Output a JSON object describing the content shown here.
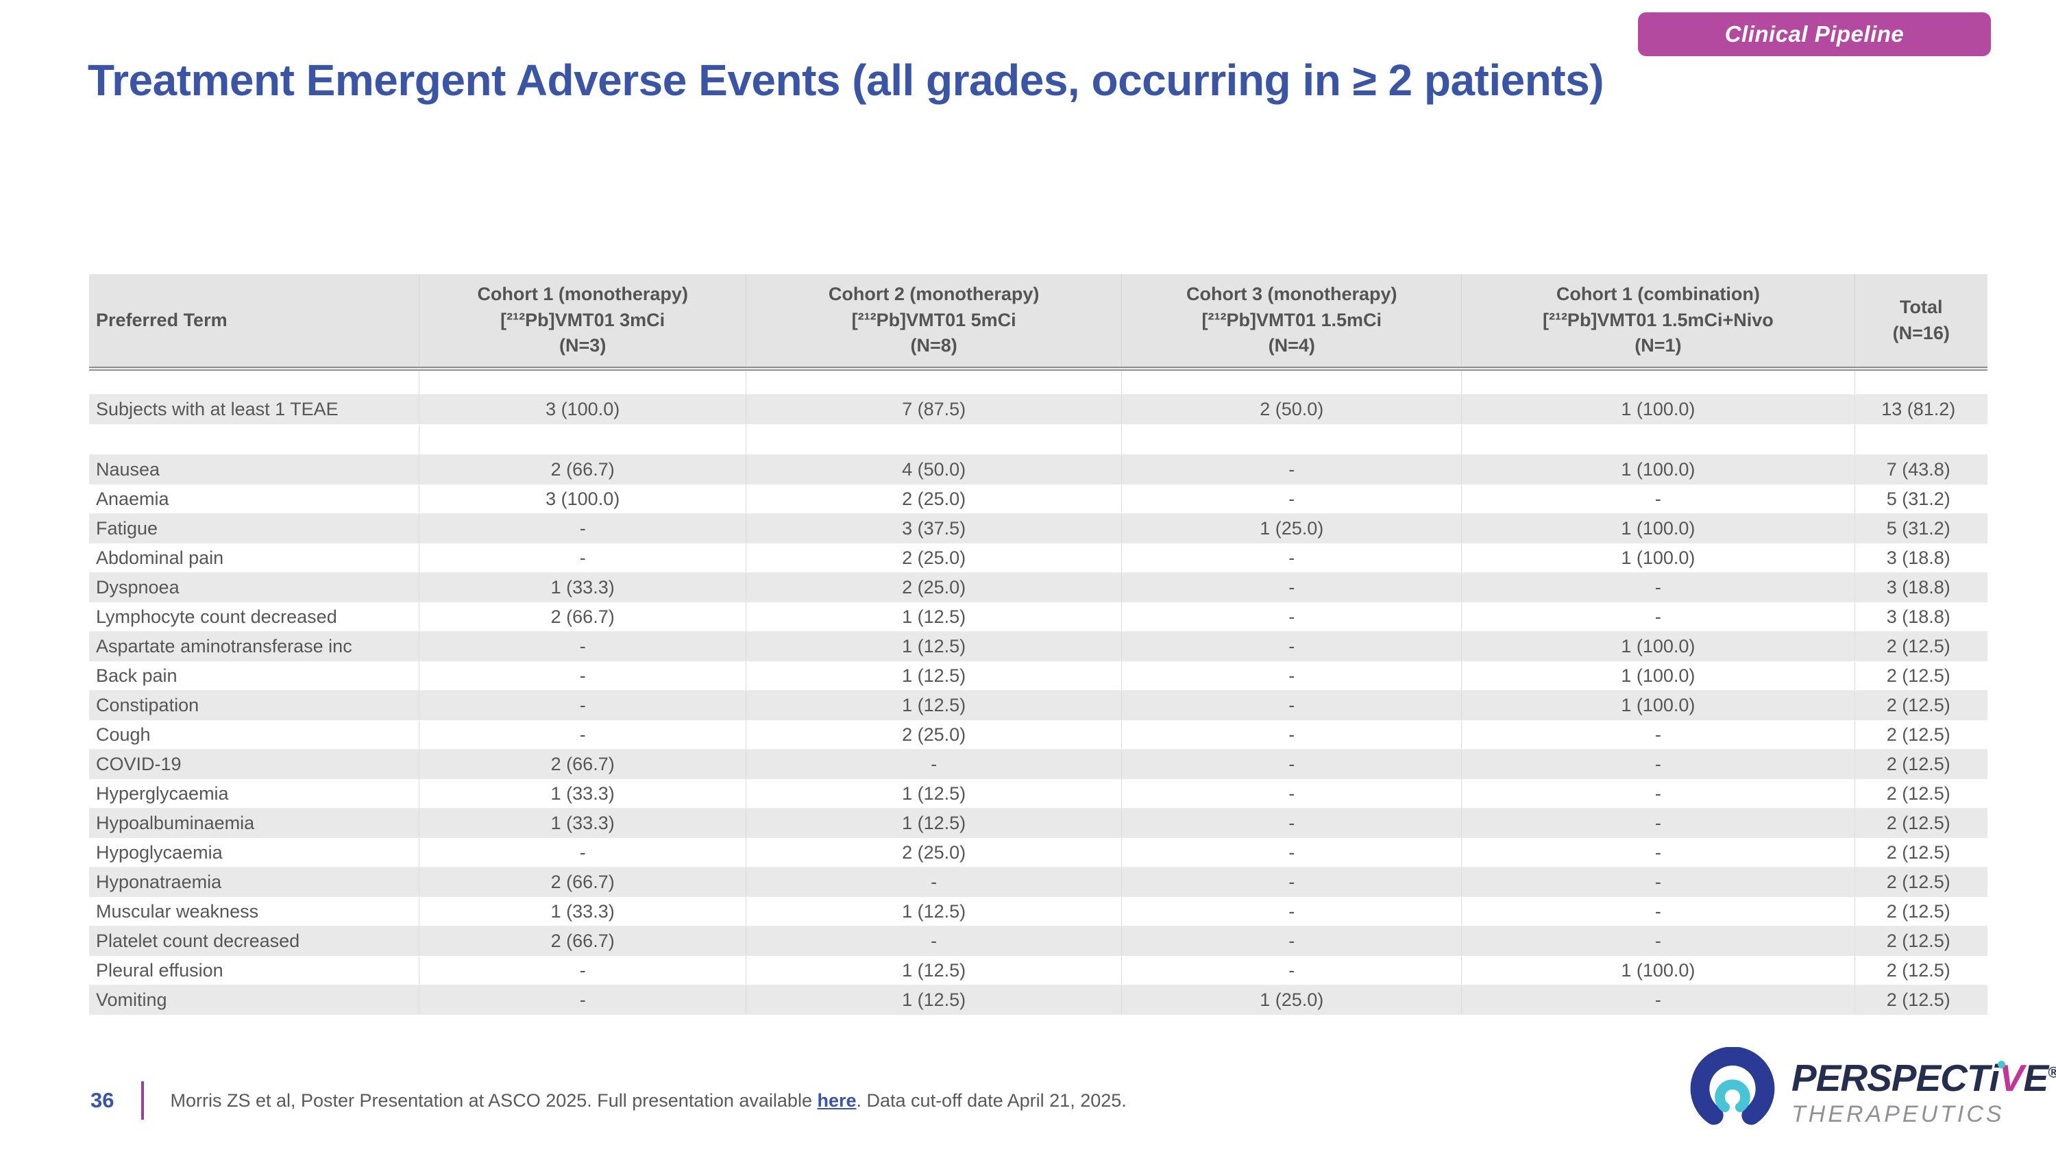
{
  "badge": {
    "label": "Clinical Pipeline"
  },
  "title": "Treatment Emergent Adverse Events (all grades, occurring in ≥ 2 patients)",
  "table": {
    "columns": [
      {
        "lines": [
          "Preferred Term"
        ]
      },
      {
        "lines": [
          "Cohort 1 (monotherapy)",
          "[²¹²Pb]VMT01 3mCi",
          "(N=3)"
        ]
      },
      {
        "lines": [
          "Cohort 2 (monotherapy)",
          "[²¹²Pb]VMT01 5mCi",
          "(N=8)"
        ]
      },
      {
        "lines": [
          "Cohort 3 (monotherapy)",
          "[²¹²Pb]VMT01 1.5mCi",
          "(N=4)"
        ]
      },
      {
        "lines": [
          "Cohort 1 (combination)",
          "[²¹²Pb]VMT01 1.5mCi+Nivo",
          "(N=1)"
        ]
      },
      {
        "lines": [
          "Total",
          "(N=16)"
        ]
      }
    ],
    "rows": [
      {
        "blank": true
      },
      {
        "term": "Subjects with at least 1 TEAE",
        "values": [
          "3 (100.0)",
          "7 (87.5)",
          "2 (50.0)",
          "1 (100.0)",
          "13 (81.2)"
        ],
        "shaded": true
      },
      {
        "blank": true,
        "tall": true
      },
      {
        "term": "Nausea",
        "values": [
          "2 (66.7)",
          "4 (50.0)",
          "-",
          "1 (100.0)",
          "7 (43.8)"
        ],
        "shaded": true
      },
      {
        "term": "Anaemia",
        "values": [
          "3 (100.0)",
          "2 (25.0)",
          "-",
          "-",
          "5 (31.2)"
        ],
        "shaded": false
      },
      {
        "term": "Fatigue",
        "values": [
          "-",
          "3 (37.5)",
          "1 (25.0)",
          "1 (100.0)",
          "5 (31.2)"
        ],
        "shaded": true
      },
      {
        "term": "Abdominal pain",
        "values": [
          "-",
          "2 (25.0)",
          "-",
          "1 (100.0)",
          "3 (18.8)"
        ],
        "shaded": false
      },
      {
        "term": "Dyspnoea",
        "values": [
          "1 (33.3)",
          "2 (25.0)",
          "-",
          "-",
          "3 (18.8)"
        ],
        "shaded": true
      },
      {
        "term": "Lymphocyte count decreased",
        "values": [
          "2 (66.7)",
          "1 (12.5)",
          "-",
          "-",
          "3 (18.8)"
        ],
        "shaded": false
      },
      {
        "term": "Aspartate aminotransferase inc",
        "values": [
          "-",
          "1 (12.5)",
          "-",
          "1 (100.0)",
          "2 (12.5)"
        ],
        "shaded": true
      },
      {
        "term": "Back pain",
        "values": [
          "-",
          "1 (12.5)",
          "-",
          "1 (100.0)",
          "2 (12.5)"
        ],
        "shaded": false
      },
      {
        "term": "Constipation",
        "values": [
          "-",
          "1 (12.5)",
          "-",
          "1 (100.0)",
          "2 (12.5)"
        ],
        "shaded": true
      },
      {
        "term": "Cough",
        "values": [
          "-",
          "2 (25.0)",
          "-",
          "-",
          "2 (12.5)"
        ],
        "shaded": false
      },
      {
        "term": "COVID-19",
        "values": [
          "2 (66.7)",
          "-",
          "-",
          "-",
          "2 (12.5)"
        ],
        "shaded": true
      },
      {
        "term": "Hyperglycaemia",
        "values": [
          "1 (33.3)",
          "1 (12.5)",
          "-",
          "-",
          "2 (12.5)"
        ],
        "shaded": false
      },
      {
        "term": "Hypoalbuminaemia",
        "values": [
          "1 (33.3)",
          "1 (12.5)",
          "-",
          "-",
          "2 (12.5)"
        ],
        "shaded": true
      },
      {
        "term": "Hypoglycaemia",
        "values": [
          "-",
          "2 (25.0)",
          "-",
          "-",
          "2 (12.5)"
        ],
        "shaded": false
      },
      {
        "term": "Hyponatraemia",
        "values": [
          "2 (66.7)",
          "-",
          "-",
          "-",
          "2 (12.5)"
        ],
        "shaded": true
      },
      {
        "term": "Muscular weakness",
        "values": [
          "1 (33.3)",
          "1 (12.5)",
          "-",
          "-",
          "2 (12.5)"
        ],
        "shaded": false
      },
      {
        "term": "Platelet count decreased",
        "values": [
          "2 (66.7)",
          "-",
          "-",
          "-",
          "2 (12.5)"
        ],
        "shaded": true
      },
      {
        "term": "Pleural effusion",
        "values": [
          "-",
          "1 (12.5)",
          "-",
          "1 (100.0)",
          "2 (12.5)"
        ],
        "shaded": false
      },
      {
        "term": "Vomiting",
        "values": [
          "-",
          "1 (12.5)",
          "1 (25.0)",
          "-",
          "2 (12.5)"
        ],
        "shaded": true
      }
    ]
  },
  "footer": {
    "page_number": "36",
    "reference_prefix": "Morris ZS et al, Poster Presentation at ASCO 2025. Full presentation available ",
    "link_text": "here",
    "reference_suffix": ". Data cut-off date April 21, 2025."
  },
  "logo": {
    "brand": "PERSPECTiVE®",
    "word_pre": "PERSPECT",
    "word_i": "i",
    "word_v": "V",
    "word_e": "E",
    "reg_mark": "®",
    "subtitle": "THERAPEUTICS"
  },
  "colors": {
    "title_blue": "#3a54a6",
    "badge_magenta": "#b44a9f",
    "header_gray": "#e4e4e4",
    "shaded_row_gray": "#e9e9e9",
    "cell_text_gray": "#565656",
    "footer_divider_purple": "#9b3e96",
    "link_blue": "#3a54a6",
    "logo_navy": "#252e4f",
    "logo_arc_blue": "#2b3a94",
    "logo_teal": "#47c5d6",
    "logo_magenta": "#c13597",
    "logo_subtitle_gray": "#8f9194"
  }
}
